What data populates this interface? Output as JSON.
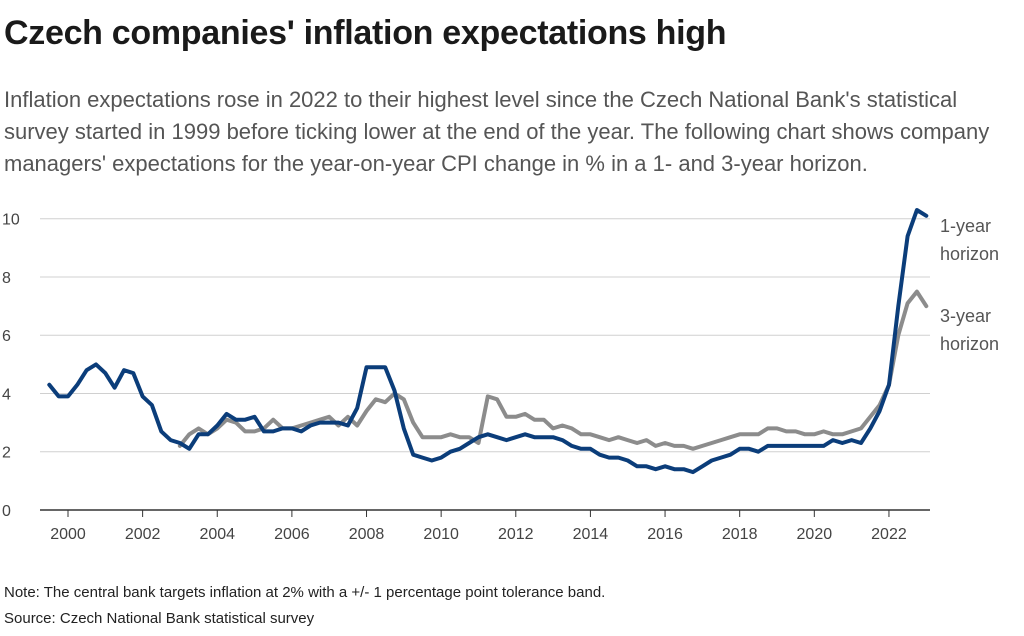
{
  "title": "Czech companies' inflation expectations high",
  "subtitle": "Inflation expectations rose in 2022 to their highest level since the Czech National Bank's statistical survey started in 1999 before ticking lower at the end of the year. The following chart shows company managers' expectations for the year-on-year CPI change in % in a 1- and 3-year horizon.",
  "note": "Note: The central bank targets inflation at 2% with a +/- 1 percentage point tolerance band.",
  "source": "Source: Czech National Bank statistical survey",
  "colors": {
    "one_year": "#0b3d7a",
    "three_year": "#8c8c8c",
    "grid": "#d0d0d0",
    "axis": "#333333"
  },
  "chart_data": {
    "type": "line",
    "ylim": [
      0,
      10.3
    ],
    "xlim": [
      1999.25,
      2023.1
    ],
    "y_ticks": [
      0,
      2,
      4,
      6,
      8,
      10
    ],
    "x_ticks": [
      2000,
      2002,
      2004,
      2006,
      2008,
      2010,
      2012,
      2014,
      2016,
      2018,
      2020,
      2022
    ],
    "grid": true,
    "series": [
      {
        "name": "1-year horizon",
        "label_lines": [
          "1-year",
          "horizon"
        ],
        "x": [
          1999.5,
          1999.75,
          2000,
          2000.25,
          2000.5,
          2000.75,
          2001,
          2001.25,
          2001.5,
          2001.75,
          2002,
          2002.25,
          2002.5,
          2002.75,
          2003,
          2003.25,
          2003.5,
          2003.75,
          2004,
          2004.25,
          2004.5,
          2004.75,
          2005,
          2005.25,
          2005.5,
          2005.75,
          2006,
          2006.25,
          2006.5,
          2006.75,
          2007,
          2007.25,
          2007.5,
          2007.75,
          2008,
          2008.25,
          2008.5,
          2008.75,
          2009,
          2009.25,
          2009.5,
          2009.75,
          2010,
          2010.25,
          2010.5,
          2010.75,
          2011,
          2011.25,
          2011.5,
          2011.75,
          2012,
          2012.25,
          2012.5,
          2012.75,
          2013,
          2013.25,
          2013.5,
          2013.75,
          2014,
          2014.25,
          2014.5,
          2014.75,
          2015,
          2015.25,
          2015.5,
          2015.75,
          2016,
          2016.25,
          2016.5,
          2016.75,
          2017,
          2017.25,
          2017.5,
          2017.75,
          2018,
          2018.25,
          2018.5,
          2018.75,
          2019,
          2019.25,
          2019.5,
          2019.75,
          2020,
          2020.25,
          2020.5,
          2020.75,
          2021,
          2021.25,
          2021.5,
          2021.75,
          2022,
          2022.25,
          2022.5,
          2022.75,
          2023
        ],
        "y": [
          4.3,
          3.9,
          3.9,
          4.3,
          4.8,
          5.0,
          4.7,
          4.2,
          4.8,
          4.7,
          3.9,
          3.6,
          2.7,
          2.4,
          2.3,
          2.1,
          2.6,
          2.6,
          2.9,
          3.3,
          3.1,
          3.1,
          3.2,
          2.7,
          2.7,
          2.8,
          2.8,
          2.7,
          2.9,
          3.0,
          3.0,
          3.0,
          2.9,
          3.5,
          4.9,
          4.9,
          4.9,
          4.1,
          2.8,
          1.9,
          1.8,
          1.7,
          1.8,
          2.0,
          2.1,
          2.3,
          2.5,
          2.6,
          2.5,
          2.4,
          2.5,
          2.6,
          2.5,
          2.5,
          2.5,
          2.4,
          2.2,
          2.1,
          2.1,
          1.9,
          1.8,
          1.8,
          1.7,
          1.5,
          1.5,
          1.4,
          1.5,
          1.4,
          1.4,
          1.3,
          1.5,
          1.7,
          1.8,
          1.9,
          2.1,
          2.1,
          2.0,
          2.2,
          2.2,
          2.2,
          2.2,
          2.2,
          2.2,
          2.2,
          2.4,
          2.3,
          2.4,
          2.3,
          2.8,
          3.4,
          4.3,
          7.0,
          9.4,
          10.3,
          10.1
        ]
      },
      {
        "name": "3-year horizon",
        "label_lines": [
          "3-year",
          "horizon"
        ],
        "x": [
          2003,
          2003.25,
          2003.5,
          2003.75,
          2004,
          2004.25,
          2004.5,
          2004.75,
          2005,
          2005.25,
          2005.5,
          2005.75,
          2006,
          2006.25,
          2006.5,
          2006.75,
          2007,
          2007.25,
          2007.5,
          2007.75,
          2008,
          2008.25,
          2008.5,
          2008.75,
          2009,
          2009.25,
          2009.5,
          2009.75,
          2010,
          2010.25,
          2010.5,
          2010.75,
          2011,
          2011.25,
          2011.5,
          2011.75,
          2012,
          2012.25,
          2012.5,
          2012.75,
          2013,
          2013.25,
          2013.5,
          2013.75,
          2014,
          2014.25,
          2014.5,
          2014.75,
          2015,
          2015.25,
          2015.5,
          2015.75,
          2016,
          2016.25,
          2016.5,
          2016.75,
          2017,
          2017.25,
          2017.5,
          2017.75,
          2018,
          2018.25,
          2018.5,
          2018.75,
          2019,
          2019.25,
          2019.5,
          2019.75,
          2020,
          2020.25,
          2020.5,
          2020.75,
          2021,
          2021.25,
          2021.5,
          2021.75,
          2022,
          2022.25,
          2022.5,
          2022.75,
          2023
        ],
        "y": [
          2.2,
          2.6,
          2.8,
          2.6,
          2.8,
          3.1,
          3.0,
          2.7,
          2.7,
          2.8,
          3.1,
          2.8,
          2.8,
          2.9,
          3.0,
          3.1,
          3.2,
          2.9,
          3.2,
          2.9,
          3.4,
          3.8,
          3.7,
          4.0,
          3.8,
          3.0,
          2.5,
          2.5,
          2.5,
          2.6,
          2.5,
          2.5,
          2.3,
          3.9,
          3.8,
          3.2,
          3.2,
          3.3,
          3.1,
          3.1,
          2.8,
          2.9,
          2.8,
          2.6,
          2.6,
          2.5,
          2.4,
          2.5,
          2.4,
          2.3,
          2.4,
          2.2,
          2.3,
          2.2,
          2.2,
          2.1,
          2.2,
          2.3,
          2.4,
          2.5,
          2.6,
          2.6,
          2.6,
          2.8,
          2.8,
          2.7,
          2.7,
          2.6,
          2.6,
          2.7,
          2.6,
          2.6,
          2.7,
          2.8,
          3.2,
          3.6,
          4.3,
          6.0,
          7.1,
          7.5,
          7.0
        ]
      }
    ]
  }
}
